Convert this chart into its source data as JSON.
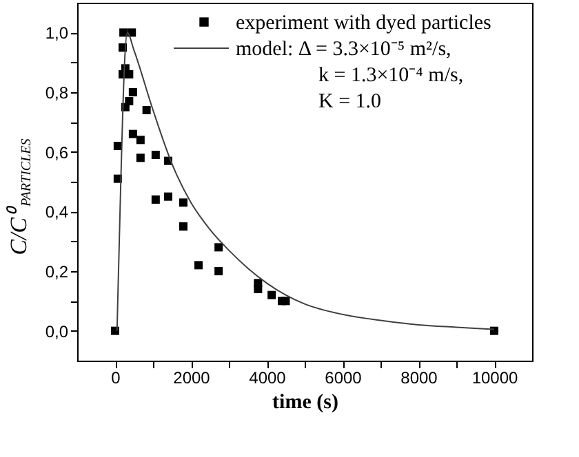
{
  "chart_data": {
    "type": "scatter",
    "xlabel": "time (s)",
    "ylabel": "C/C⁰$_{PARTICLES}$",
    "xlim": [
      -1000,
      11000
    ],
    "ylim": [
      -0.1,
      1.1
    ],
    "xticks": [
      0,
      {
        "value": 1000,
        "label": null
      },
      2000,
      {
        "value": 3000,
        "label": null
      },
      4000,
      {
        "value": 5000,
        "label": null
      },
      6000,
      {
        "value": 7000,
        "label": null
      },
      8000,
      {
        "value": 9000,
        "label": null
      },
      10000
    ],
    "yticks": [
      {
        "value": 0.0,
        "label": "0,0"
      },
      {
        "value": 0.1,
        "label": null
      },
      {
        "value": 0.2,
        "label": "0,2"
      },
      {
        "value": 0.3,
        "label": null
      },
      {
        "value": 0.4,
        "label": "0,4"
      },
      {
        "value": 0.5,
        "label": null
      },
      {
        "value": 0.6,
        "label": "0,6"
      },
      {
        "value": 0.7,
        "label": null
      },
      {
        "value": 0.8,
        "label": "0,8"
      },
      {
        "value": 0.9,
        "label": null
      },
      {
        "value": 1.0,
        "label": "1,0"
      }
    ],
    "grid": false,
    "legend": "top right",
    "marker": "square",
    "series": [
      {
        "name": "experiment with dyed particles",
        "color": "#000000",
        "x": [
          0,
          70,
          70,
          220,
          440,
          200,
          270,
          200,
          370,
          470,
          370,
          270,
          830,
          470,
          670,
          670,
          1070,
          1400,
          1070,
          1400,
          1800,
          1800,
          2730,
          2200,
          2730,
          3770,
          3770,
          4130,
          4400,
          4500,
          10000
        ],
        "values": [
          0.0,
          0.51,
          0.62,
          1.0,
          1.0,
          0.95,
          0.88,
          0.86,
          0.86,
          0.8,
          0.77,
          0.75,
          0.74,
          0.66,
          0.64,
          0.58,
          0.59,
          0.57,
          0.44,
          0.45,
          0.43,
          0.35,
          0.28,
          0.22,
          0.2,
          0.16,
          0.14,
          0.12,
          0.1,
          0.1,
          0.0
        ]
      },
      {
        "name": "model:   Δ = 3.3×10⁻⁵ m²/s,\nk = 1.3×10⁻⁴ m/s,\nK = 1.0",
        "type": "line",
        "color": "#404040",
        "line_style": "solid",
        "marker": "none",
        "x": [
          50,
          150,
          250,
          320,
          500,
          1000,
          1500,
          2000,
          2500,
          3000,
          3500,
          4000,
          4500,
          5000,
          6000,
          7000,
          8000,
          9000,
          10000
        ],
        "values": [
          0.0,
          0.5,
          0.9,
          1.0,
          0.94,
          0.74,
          0.56,
          0.43,
          0.34,
          0.27,
          0.21,
          0.16,
          0.12,
          0.09,
          0.055,
          0.035,
          0.02,
          0.012,
          0.005
        ]
      }
    ]
  }
}
